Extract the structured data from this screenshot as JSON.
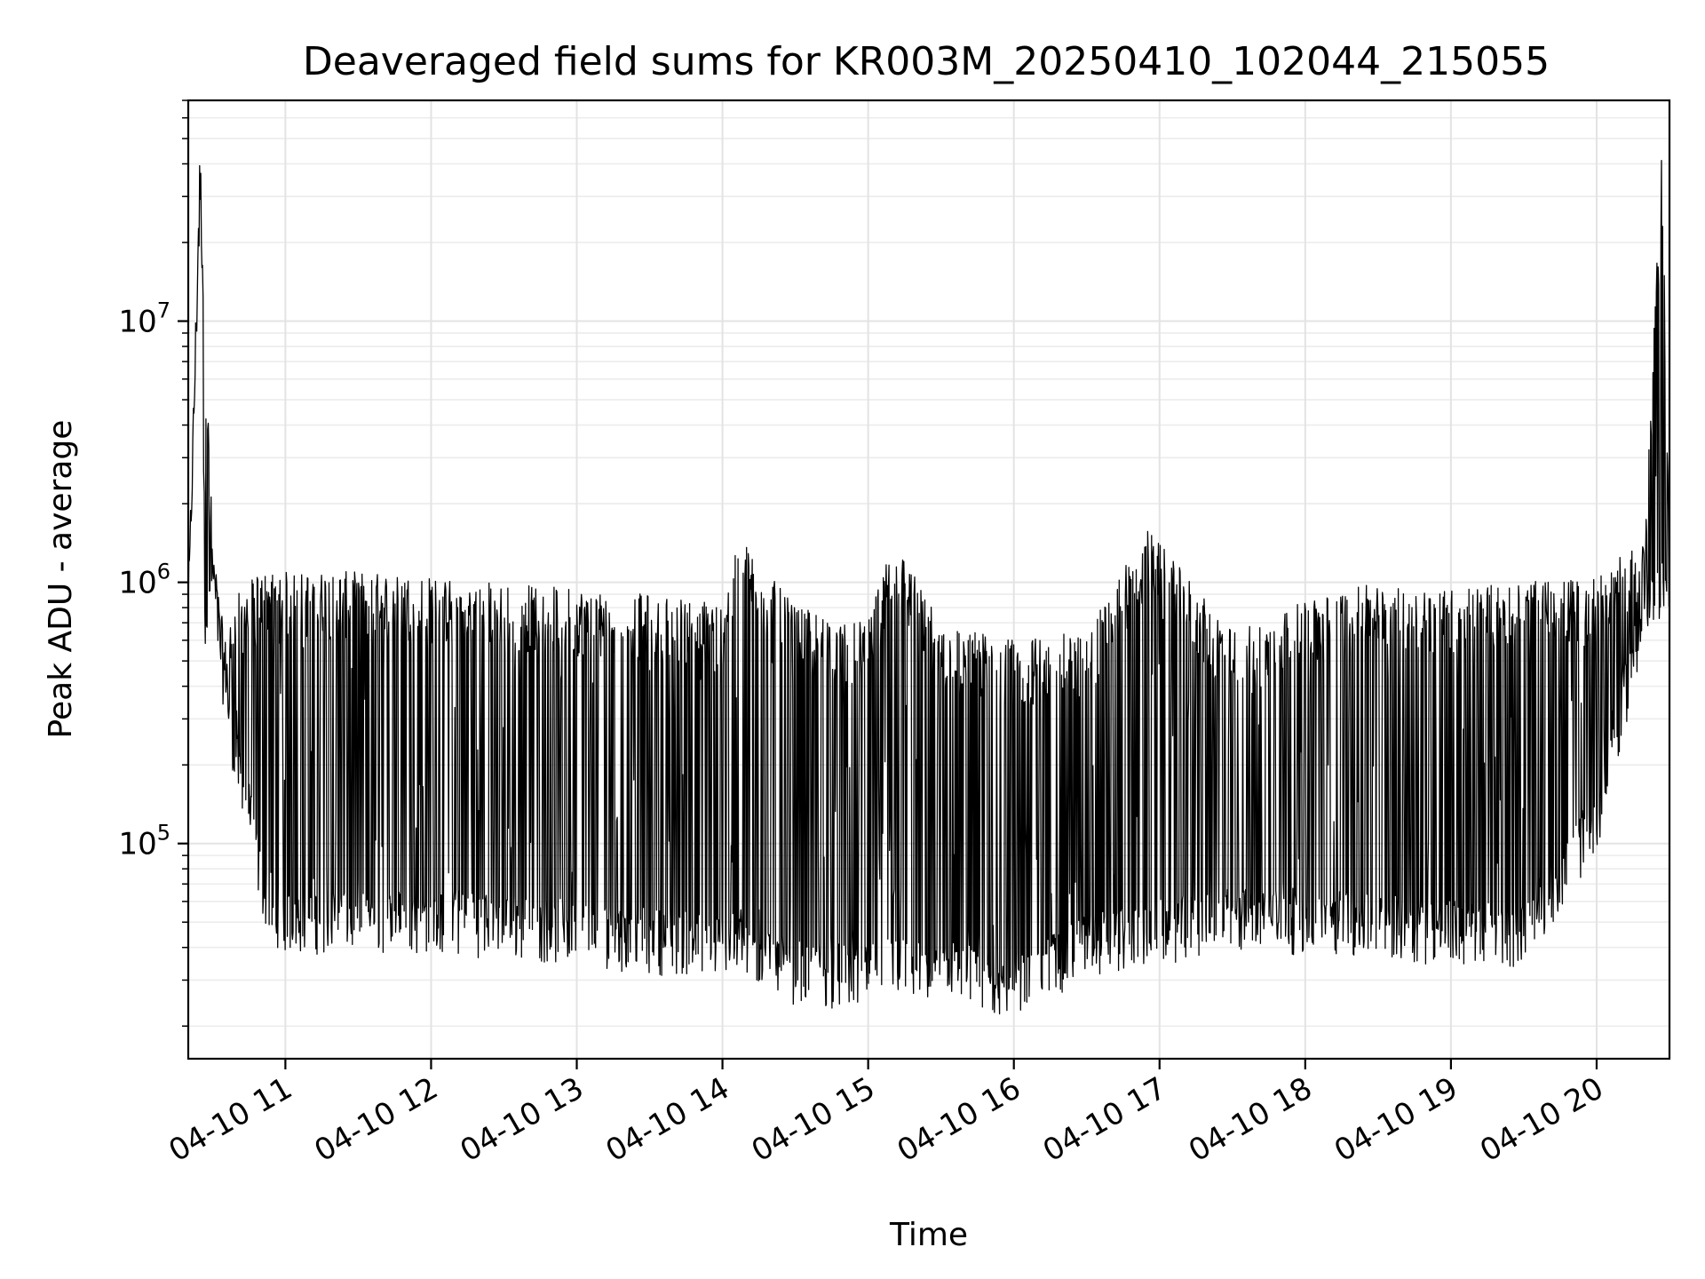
{
  "chart_data": {
    "type": "line",
    "title": "Deaveraged field sums for KR003M_20250410_102044_215055",
    "xlabel": "Time",
    "ylabel": "Peak ADU - average",
    "yscale": "log",
    "xlim": [
      "2025-04-10 10:20",
      "2025-04-10 20:30"
    ],
    "ylim": [
      15000,
      70000000
    ],
    "grid": true,
    "line_color": "#000000",
    "x_ticks": [
      "04-10 11",
      "04-10 12",
      "04-10 13",
      "04-10 14",
      "04-10 15",
      "04-10 16",
      "04-10 17",
      "04-10 18",
      "04-10 19",
      "04-10 20"
    ],
    "y_ticks": [
      {
        "base": "10",
        "exp": "5",
        "value": 100000
      },
      {
        "base": "10",
        "exp": "6",
        "value": 1000000
      },
      {
        "base": "10",
        "exp": "7",
        "value": 10000000
      }
    ],
    "series": [
      {
        "x": [
          "2025-04-10 10:20",
          "2025-04-10 10:25",
          "2025-04-10 10:27",
          "2025-04-10 10:30",
          "2025-04-10 10:35",
          "2025-04-10 10:40",
          "2025-04-10 10:45",
          "2025-04-10 10:50",
          "2025-04-10 10:55",
          "2025-04-10 11:00",
          "2025-04-10 11:30",
          "2025-04-10 12:00",
          "2025-04-10 12:30",
          "2025-04-10 13:00",
          "2025-04-10 13:30",
          "2025-04-10 14:00",
          "2025-04-10 14:07",
          "2025-04-10 14:30",
          "2025-04-10 15:00",
          "2025-04-10 15:10",
          "2025-04-10 15:30",
          "2025-04-10 16:00",
          "2025-04-10 16:30",
          "2025-04-10 16:55",
          "2025-04-10 17:30",
          "2025-04-10 18:00",
          "2025-04-10 18:30",
          "2025-04-10 19:00",
          "2025-04-10 19:30",
          "2025-04-10 20:00",
          "2025-04-10 20:20",
          "2025-04-10 20:27",
          "2025-04-10 20:30"
        ],
        "low": [
          600000,
          40000000,
          700000,
          1000000,
          400000,
          200000,
          130000,
          70000,
          55000,
          50000,
          50000,
          50000,
          48000,
          45000,
          42000,
          40000,
          40000,
          32000,
          30000,
          35000,
          30000,
          28000,
          40000,
          45000,
          50000,
          50000,
          48000,
          45000,
          45000,
          120000,
          800000,
          900000,
          900000
        ],
        "high": [
          1000000,
          45000000,
          9000000,
          1500000,
          600000,
          900000,
          1000000,
          1100000,
          1100000,
          1100000,
          1100000,
          1050000,
          1000000,
          950000,
          900000,
          850000,
          1500000,
          800000,
          700000,
          1500000,
          700000,
          600000,
          650000,
          1600000,
          650000,
          850000,
          1000000,
          950000,
          1000000,
          1050000,
          1500000,
          50000000,
          1100000
        ]
      }
    ]
  }
}
